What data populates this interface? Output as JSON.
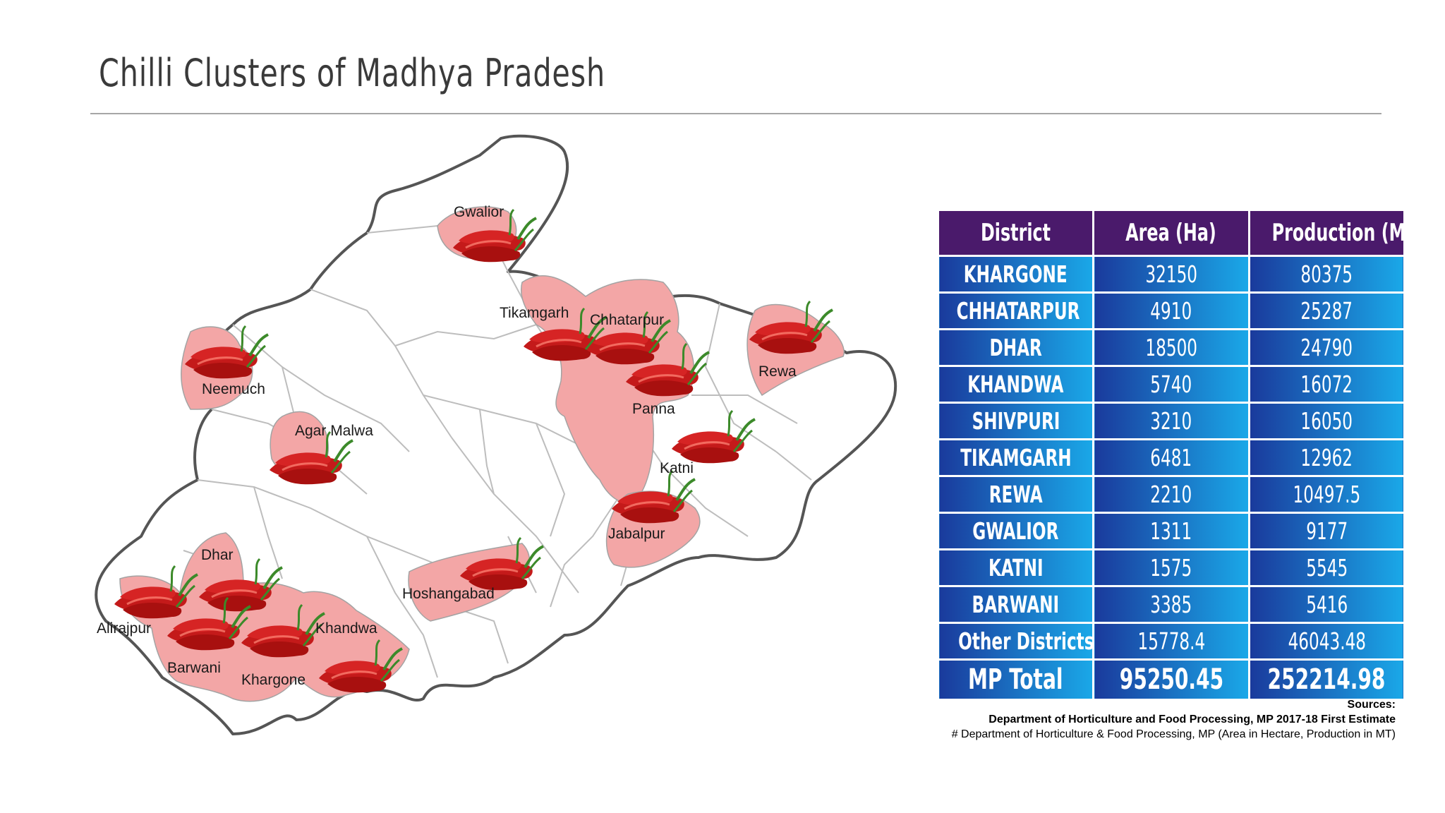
{
  "title": "Chilli Clusters of Madhya Pradesh",
  "colors": {
    "header_bg": "#4a1a6b",
    "row_gradient_top": "#1a3a9c",
    "row_gradient_bottom": "#1aa8e8",
    "cluster_fill": "#f3a6a6",
    "chilli_red": "#c41a1a"
  },
  "map": {
    "districts": [
      "Gwalior",
      "Tikamgarh",
      "Chhatarpur",
      "Rewa",
      "Neemuch",
      "Panna",
      "Agar Malwa",
      "Katni",
      "Jabalpur",
      "Dhar",
      "Hoshangabad",
      "Alirajpur",
      "Khandwa",
      "Barwani",
      "Khargone"
    ],
    "icon": "chilli-icon"
  },
  "table": {
    "headers": [
      "District",
      "Area (Ha)",
      "Production (MT)"
    ],
    "rows": [
      {
        "district": "KHARGONE",
        "area": "32150",
        "production": "80375"
      },
      {
        "district": "CHHATARPUR",
        "area": "4910",
        "production": "25287"
      },
      {
        "district": "DHAR",
        "area": "18500",
        "production": "24790"
      },
      {
        "district": "KHANDWA",
        "area": "5740",
        "production": "16072"
      },
      {
        "district": "SHIVPURI",
        "area": "3210",
        "production": "16050"
      },
      {
        "district": "TIKAMGARH",
        "area": "6481",
        "production": "12962"
      },
      {
        "district": "REWA",
        "area": "2210",
        "production": "10497.5"
      },
      {
        "district": "GWALIOR",
        "area": "1311",
        "production": "9177"
      },
      {
        "district": "KATNI",
        "area": "1575",
        "production": "5545"
      },
      {
        "district": "BARWANI",
        "area": "3385",
        "production": "5416"
      },
      {
        "district": "Other Districts",
        "area": "15778.4",
        "production": "46043.48"
      }
    ],
    "total": {
      "district": "MP Total",
      "area": "95250.45",
      "production": "252214.98"
    }
  },
  "sources": {
    "heading": "Sources:",
    "line1": "Department of Horticulture and Food Processing, MP 2017-18 First Estimate",
    "line2": "# Department of Horticulture & Food Processing, MP (Area in Hectare, Production in MT)"
  }
}
